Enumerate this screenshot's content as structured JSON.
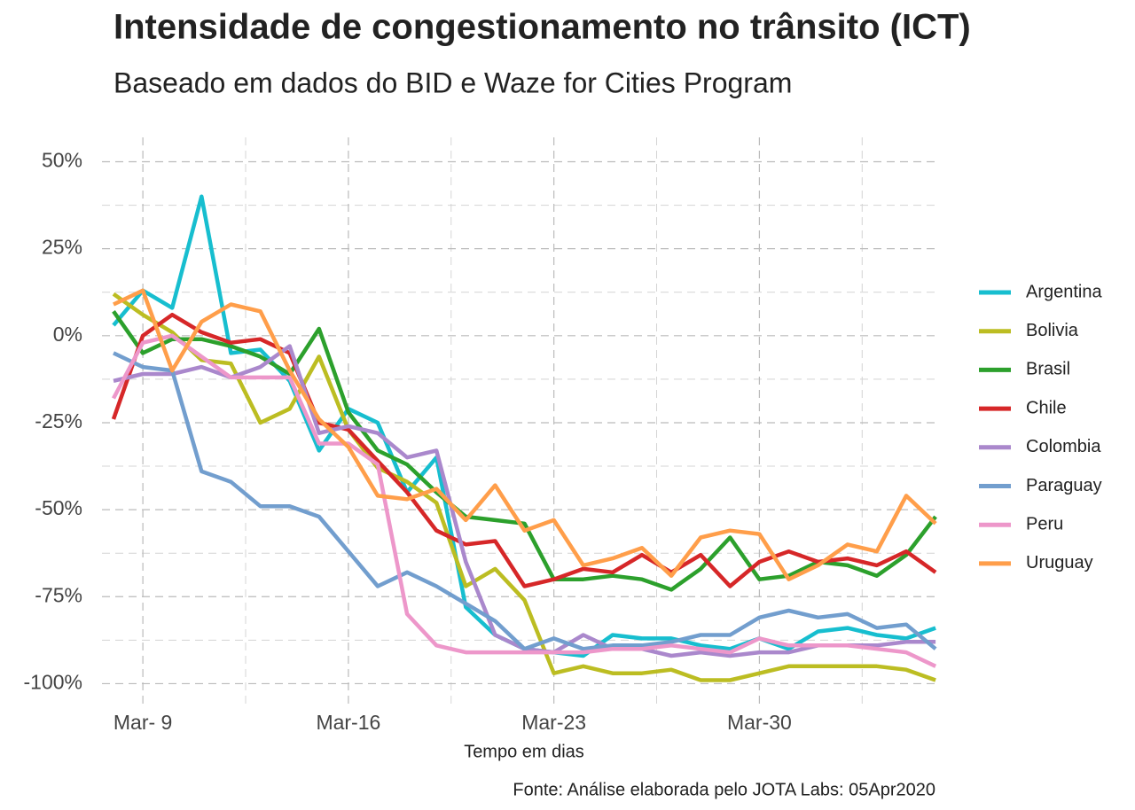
{
  "chart_data": {
    "type": "line",
    "title": "Intensidade de congestionamento no trânsito (ICT)",
    "subtitle": "Baseado em dados do BID e Waze for Cities Program",
    "x_label": "Tempo em dias",
    "caption": "Fonte: Análise elaborada pelo JOTA Labs: 05Apr2020",
    "categories": [
      null,
      "Mar- 9",
      null,
      null,
      null,
      null,
      null,
      null,
      "Mar-16",
      null,
      null,
      null,
      null,
      null,
      null,
      "Mar-23",
      null,
      null,
      null,
      null,
      null,
      null,
      "Mar-30",
      null,
      null,
      null,
      null,
      null,
      null
    ],
    "ylim": [
      -106,
      57
    ],
    "yticks": [
      {
        "value": -100,
        "label": "-100%"
      },
      {
        "value": -75,
        "label": "-75%"
      },
      {
        "value": -50,
        "label": "-50%"
      },
      {
        "value": -25,
        "label": "-25%"
      },
      {
        "value": 0,
        "label": "0%"
      },
      {
        "value": 25,
        "label": "25%"
      },
      {
        "value": 50,
        "label": "50%"
      }
    ],
    "grid": true,
    "legend": "right",
    "series": [
      {
        "name": "Argentina",
        "color": "#17becf",
        "values": [
          3,
          13,
          8,
          40,
          -5,
          -4,
          -13,
          -33,
          -21,
          -25,
          -45,
          -35,
          -78,
          -86,
          -90,
          -91,
          -92,
          -86,
          -87,
          -87,
          -89,
          -90,
          -87,
          -90,
          -85,
          -84,
          -86,
          -87,
          -84
        ]
      },
      {
        "name": "Bolivia",
        "color": "#bcbd22",
        "values": [
          12,
          6,
          1,
          -7,
          -8,
          -25,
          -21,
          -6,
          -27,
          -38,
          -42,
          -48,
          -72,
          -67,
          -76,
          -97,
          -95,
          -97,
          -97,
          -96,
          -99,
          -99,
          -97,
          -95,
          -95,
          -95,
          -95,
          -96,
          -99
        ]
      },
      {
        "name": "Brasil",
        "color": "#2ca02c",
        "values": [
          7,
          -5,
          -1,
          -1,
          -3,
          -6,
          -11,
          2,
          -22,
          -33,
          -37,
          -45,
          -52,
          -53,
          -54,
          -70,
          -70,
          -69,
          -70,
          -73,
          -67,
          -58,
          -70,
          -69,
          -65,
          -66,
          -69,
          -63,
          -52
        ]
      },
      {
        "name": "Chile",
        "color": "#d62728",
        "values": [
          -24,
          0,
          6,
          1,
          -2,
          -1,
          -5,
          -25,
          -27,
          -36,
          -45,
          -56,
          -60,
          -59,
          -72,
          -70,
          -67,
          -68,
          -63,
          -68,
          -63,
          -72,
          -65,
          -62,
          -65,
          -64,
          -66,
          -62,
          -68
        ]
      },
      {
        "name": "Colombia",
        "color": "#aa88cc",
        "values": [
          -13,
          -11,
          -11,
          -9,
          -12,
          -9,
          -3,
          -28,
          -26,
          -28,
          -35,
          -33,
          -65,
          -86,
          -90,
          -91,
          -86,
          -90,
          -90,
          -92,
          -91,
          -92,
          -91,
          -91,
          -89,
          -89,
          -89,
          -88,
          -88
        ]
      },
      {
        "name": "Paraguay",
        "color": "#729ece",
        "values": [
          -5,
          -9,
          -10,
          -39,
          -42,
          -49,
          -49,
          -52,
          -62,
          -72,
          -68,
          -72,
          -77,
          -82,
          -90,
          -87,
          -90,
          -89,
          -89,
          -88,
          -86,
          -86,
          -81,
          -79,
          -81,
          -80,
          -84,
          -83,
          -90
        ]
      },
      {
        "name": "Peru",
        "color": "#ed97ca",
        "values": [
          -18,
          -2,
          0,
          -6,
          -12,
          -12,
          -12,
          -31,
          -31,
          -37,
          -80,
          -89,
          -91,
          -91,
          -91,
          -91,
          -91,
          -90,
          -90,
          -89,
          -90,
          -91,
          -87,
          -89,
          -89,
          -89,
          -90,
          -91,
          -95
        ]
      },
      {
        "name": "Uruguay",
        "color": "#ff9e4a",
        "values": [
          9,
          13,
          -10,
          4,
          9,
          7,
          -10,
          -24,
          -32,
          -46,
          -47,
          -44,
          -53,
          -43,
          -56,
          -53,
          -66,
          -64,
          -61,
          -69,
          -58,
          -56,
          -57,
          -70,
          -66,
          -60,
          -62,
          -46,
          -54
        ]
      }
    ]
  }
}
